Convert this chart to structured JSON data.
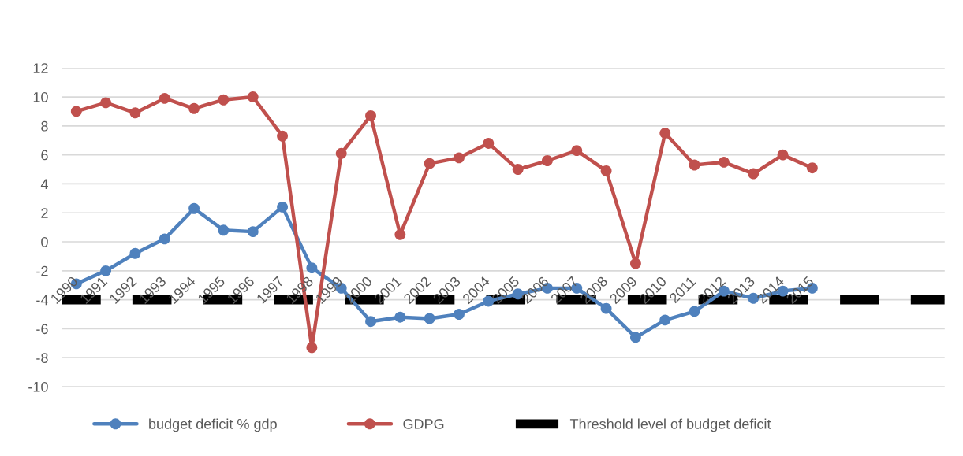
{
  "chart_data": {
    "type": "line",
    "categories": [
      "1990",
      "1991",
      "1992",
      "1993",
      "1994",
      "1995",
      "1996",
      "1997",
      "1998",
      "1999",
      "2000",
      "2001",
      "2002",
      "2003",
      "2004",
      "2005",
      "2006",
      "2007",
      "2008",
      "2009",
      "2010",
      "2011",
      "2012",
      "2013",
      "2014",
      "2015",
      null,
      null,
      null,
      null
    ],
    "series": [
      {
        "name": "budget deficit % gdp",
        "color": "#4f81bd",
        "values": [
          -2.9,
          -2.0,
          -0.8,
          0.2,
          2.3,
          0.8,
          0.7,
          2.4,
          -1.8,
          -3.2,
          -5.5,
          -5.2,
          -5.3,
          -5.0,
          -4.1,
          -3.6,
          -3.2,
          -3.2,
          -4.6,
          -6.6,
          -5.4,
          -4.8,
          -3.4,
          -3.9,
          -3.4,
          -3.2,
          null,
          null,
          null,
          null
        ]
      },
      {
        "name": "GDPG",
        "color": "#c0504d",
        "values": [
          9.0,
          9.6,
          8.9,
          9.9,
          9.2,
          9.8,
          10.0,
          7.3,
          -7.3,
          6.1,
          8.7,
          0.5,
          5.4,
          5.8,
          6.8,
          5.0,
          5.6,
          6.3,
          4.9,
          -1.5,
          7.5,
          5.3,
          5.5,
          4.7,
          6.0,
          5.1,
          null,
          null,
          null,
          null
        ]
      }
    ],
    "ref_lines": [
      {
        "axis": "y",
        "value": -4,
        "label": "Threshold level of budget deficit",
        "color": "#000000",
        "line_style": "dashed"
      }
    ],
    "ylim": [
      -10,
      12
    ],
    "yticks": [
      -10,
      -8,
      -6,
      -4,
      -2,
      0,
      2,
      4,
      6,
      8,
      10,
      12
    ],
    "grid": "y",
    "legend": "bottom",
    "marker": "circle",
    "line_style": "solid"
  }
}
